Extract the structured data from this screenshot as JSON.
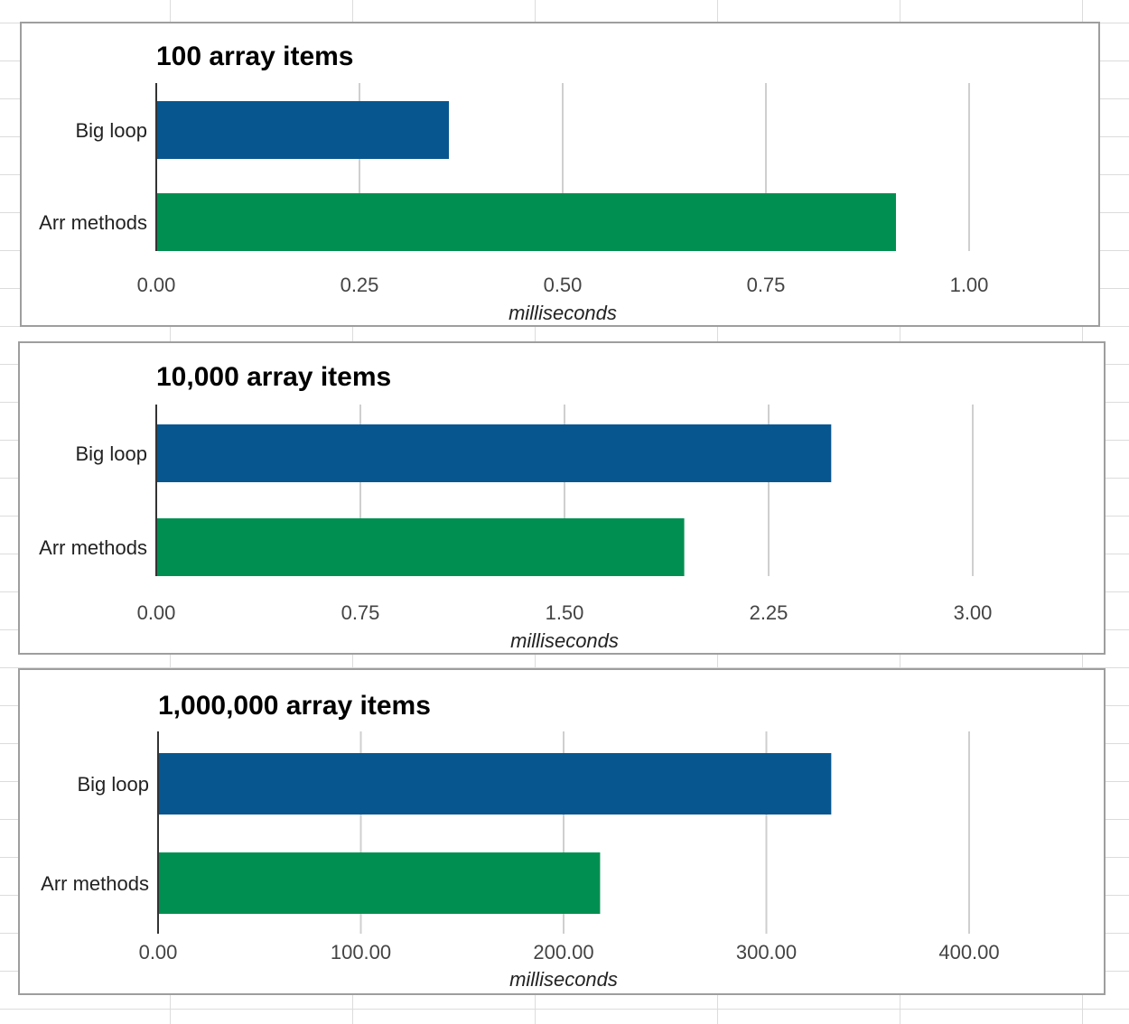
{
  "chart_data": [
    {
      "type": "bar",
      "orientation": "horizontal",
      "title": "100 array items",
      "categories": [
        "Big loop",
        "Arr methods"
      ],
      "values": [
        0.36,
        0.91
      ],
      "colors": [
        "#07568f",
        "#008f51"
      ],
      "xlabel": "milliseconds",
      "ylabel": "",
      "xlim": [
        0,
        1.1
      ],
      "ticks": [
        0,
        0.25,
        0.5,
        0.75,
        1.0
      ],
      "tick_labels": [
        "0.00",
        "0.25",
        "0.50",
        "0.75",
        "1.00"
      ],
      "grid": true
    },
    {
      "type": "bar",
      "orientation": "horizontal",
      "title": "10,000 array items",
      "categories": [
        "Big loop",
        "Arr methods"
      ],
      "values": [
        2.48,
        1.94
      ],
      "colors": [
        "#07568f",
        "#008f51"
      ],
      "xlabel": "milliseconds",
      "ylabel": "",
      "xlim": [
        0,
        3.3
      ],
      "ticks": [
        0,
        0.75,
        1.5,
        2.25,
        3.0
      ],
      "tick_labels": [
        "0.00",
        "0.75",
        "1.50",
        "2.25",
        "3.00"
      ],
      "grid": true
    },
    {
      "type": "bar",
      "orientation": "horizontal",
      "title": "1,000,000 array items",
      "categories": [
        "Big loop",
        "Arr methods"
      ],
      "values": [
        332,
        218
      ],
      "colors": [
        "#07568f",
        "#008f51"
      ],
      "xlabel": "milliseconds",
      "ylabel": "",
      "xlim": [
        0,
        465
      ],
      "ticks": [
        0,
        100,
        200,
        300,
        400
      ],
      "tick_labels": [
        "0.00",
        "100.00",
        "200.00",
        "300.00",
        "400.00"
      ],
      "grid": true
    }
  ]
}
